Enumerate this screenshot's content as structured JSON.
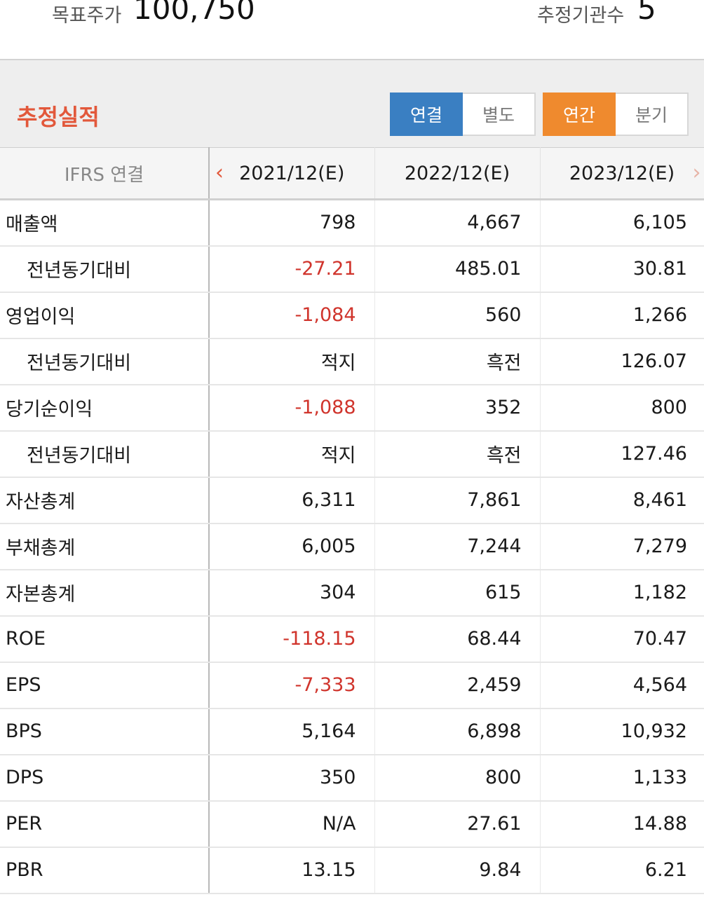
{
  "summary": {
    "target_price_label": "목표주가",
    "target_price_value": "100,750",
    "institutions_label": "추정기관수",
    "institutions_value": "5"
  },
  "section": {
    "title": "추정실적",
    "basis_options": [
      "연결",
      "별도"
    ],
    "basis_selected": "연결",
    "period_options": [
      "연간",
      "분기"
    ],
    "period_selected": "연간"
  },
  "table": {
    "corner_label": "IFRS 연결",
    "columns": [
      "2021/12(E)",
      "2022/12(E)",
      "2023/12(E)"
    ],
    "rows": [
      {
        "name": "매출액",
        "sub": false,
        "values": [
          "798",
          "4,667",
          "6,105"
        ]
      },
      {
        "name": "전년동기대비",
        "sub": true,
        "values": [
          "-27.21",
          "485.01",
          "30.81"
        ]
      },
      {
        "name": "영업이익",
        "sub": false,
        "values": [
          "-1,084",
          "560",
          "1,266"
        ]
      },
      {
        "name": "전년동기대비",
        "sub": true,
        "values": [
          "적지",
          "흑전",
          "126.07"
        ]
      },
      {
        "name": "당기순이익",
        "sub": false,
        "values": [
          "-1,088",
          "352",
          "800"
        ]
      },
      {
        "name": "전년동기대비",
        "sub": true,
        "values": [
          "적지",
          "흑전",
          "127.46"
        ]
      },
      {
        "name": "자산총계",
        "sub": false,
        "values": [
          "6,311",
          "7,861",
          "8,461"
        ]
      },
      {
        "name": "부채총계",
        "sub": false,
        "values": [
          "6,005",
          "7,244",
          "7,279"
        ]
      },
      {
        "name": "자본총계",
        "sub": false,
        "values": [
          "304",
          "615",
          "1,182"
        ]
      },
      {
        "name": "ROE",
        "sub": false,
        "values": [
          "-118.15",
          "68.44",
          "70.47"
        ]
      },
      {
        "name": "EPS",
        "sub": false,
        "values": [
          "-7,333",
          "2,459",
          "4,564"
        ]
      },
      {
        "name": "BPS",
        "sub": false,
        "values": [
          "5,164",
          "6,898",
          "10,932"
        ]
      },
      {
        "name": "DPS",
        "sub": false,
        "values": [
          "350",
          "800",
          "1,133"
        ]
      },
      {
        "name": "PER",
        "sub": false,
        "values": [
          "N/A",
          "27.61",
          "14.88"
        ]
      },
      {
        "name": "PBR",
        "sub": false,
        "values": [
          "13.15",
          "9.84",
          "6.21"
        ]
      }
    ]
  },
  "colors": {
    "accent_title": "#e2583b",
    "basis_active": "#3a7fc2",
    "period_active": "#ef8a2e",
    "negative": "#d0342c"
  },
  "icons": {
    "prev": "chevron-left-icon",
    "next": "chevron-right-icon"
  }
}
